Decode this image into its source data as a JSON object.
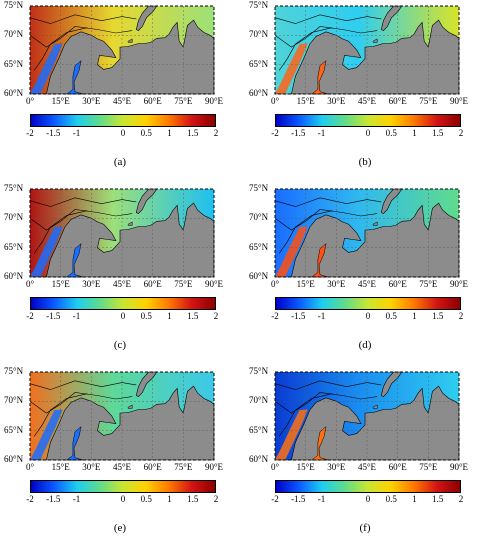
{
  "figure": {
    "lat_labels": [
      "75°N",
      "70°N",
      "65°N",
      "60°N"
    ],
    "lon_labels": [
      "0°",
      "15°E",
      "30°E",
      "45°E",
      "60°E",
      "75°E",
      "90°E"
    ],
    "colorbar_ticks": [
      "-2",
      "-1.5",
      "-1",
      "0",
      "0.5",
      "1",
      "1.5",
      "2"
    ],
    "colorbar_range": [
      -2,
      2
    ],
    "colormap": [
      "#0000c8",
      "#0a5aff",
      "#1ecdf0",
      "#5fdc8c",
      "#c8e632",
      "#ffd200",
      "#ff7800",
      "#d21414",
      "#8c0000"
    ],
    "land_color": "#8c8c8c",
    "map_extent": {
      "lon": [
        0,
        90
      ],
      "lat": [
        60,
        75
      ]
    },
    "panels": [
      {
        "id": "a",
        "label": "(a)",
        "sea_color": "#e6d830",
        "west_color": "#c03018",
        "east_color": "#9ce07a",
        "coast_color": "#1a6dff"
      },
      {
        "id": "b",
        "label": "(b)",
        "sea_color": "#2fcdf0",
        "west_color": "#4fd3d8",
        "east_color": "#d8e428",
        "coast_color": "#ff6418"
      },
      {
        "id": "c",
        "label": "(c)",
        "sea_color": "#9ce07a",
        "west_color": "#b01414",
        "east_color": "#1ec0f0",
        "coast_color": "#1a6dff"
      },
      {
        "id": "d",
        "label": "(d)",
        "sea_color": "#2fb8f0",
        "west_color": "#1a6dff",
        "east_color": "#5fdc8c",
        "coast_color": "#ff5010"
      },
      {
        "id": "e",
        "label": "(e)",
        "sea_color": "#5fd898",
        "west_color": "#f07020",
        "east_color": "#3cc8e8",
        "coast_color": "#1a6dff"
      },
      {
        "id": "f",
        "label": "(f)",
        "sea_color": "#1a8cf0",
        "west_color": "#0a3cd2",
        "east_color": "#2fcdf0",
        "coast_color": "#ff7010"
      }
    ]
  }
}
